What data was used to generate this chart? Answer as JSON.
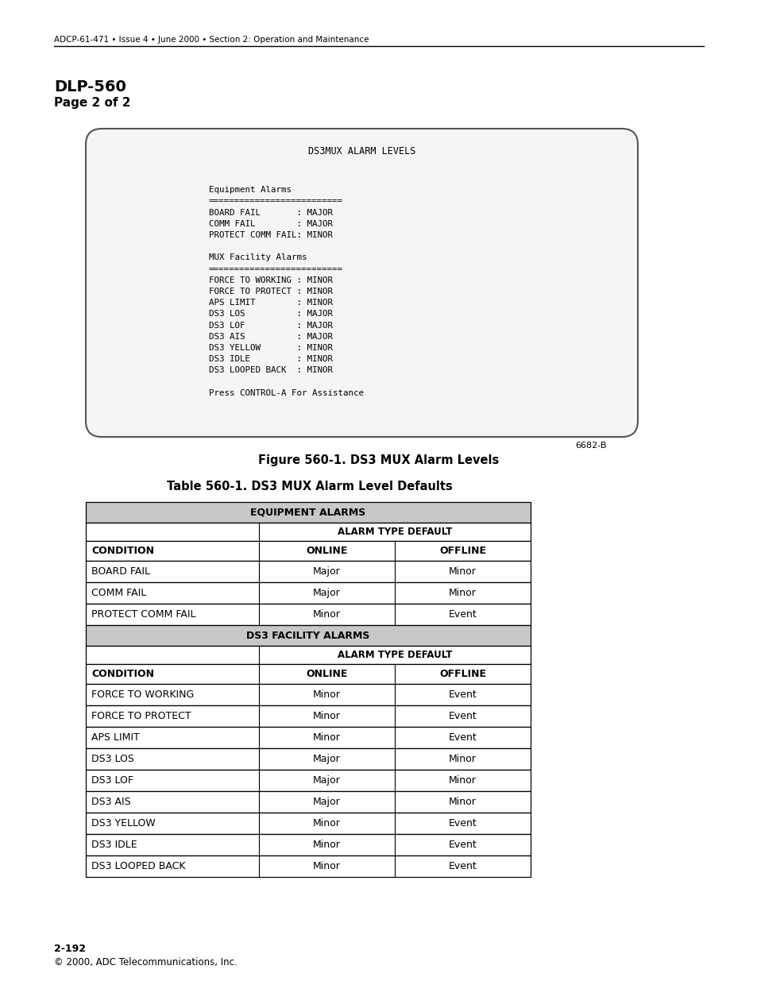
{
  "header_text": "ADCP-61-471 • Issue 4 • June 2000 • Section 2: Operation and Maintenance",
  "title1": "DLP-560",
  "title2": "Page 2 of 2",
  "screen_title": "DS3MUX ALARM LEVELS",
  "screen_lines": [
    "",
    "Equipment Alarms",
    "==========================",
    "BOARD FAIL       : MAJOR",
    "COMM FAIL        : MAJOR",
    "PROTECT COMM FAIL: MINOR",
    "",
    "MUX Facility Alarms",
    "==========================",
    "FORCE TO WORKING : MINOR",
    "FORCE TO PROTECT : MINOR",
    "APS LIMIT        : MINOR",
    "DS3 LOS          : MAJOR",
    "DS3 LOF          : MAJOR",
    "DS3 AIS          : MAJOR",
    "DS3 YELLOW       : MINOR",
    "DS3 IDLE         : MINOR",
    "DS3 LOOPED BACK  : MINOR",
    "",
    "Press CONTROL-A For Assistance"
  ],
  "figure_number": "6682-B",
  "figure_caption": "Figure 560-1. DS3 MUX Alarm Levels",
  "table_caption": "Table 560-1. DS3 MUX Alarm Level Defaults",
  "eq_header": "EQUIPMENT ALARMS",
  "ds3_header": "DS3 FACILITY ALARMS",
  "alarm_type_default": "ALARM TYPE DEFAULT",
  "col_condition": "CONDITION",
  "col_online": "ONLINE",
  "col_offline": "OFFLINE",
  "eq_rows": [
    [
      "BOARD FAIL",
      "Major",
      "Minor"
    ],
    [
      "COMM FAIL",
      "Major",
      "Minor"
    ],
    [
      "PROTECT COMM FAIL",
      "Minor",
      "Event"
    ]
  ],
  "ds3_rows": [
    [
      "FORCE TO WORKING",
      "Minor",
      "Event"
    ],
    [
      "FORCE TO PROTECT",
      "Minor",
      "Event"
    ],
    [
      "APS LIMIT",
      "Minor",
      "Event"
    ],
    [
      "DS3 LOS",
      "Major",
      "Minor"
    ],
    [
      "DS3 LOF",
      "Major",
      "Minor"
    ],
    [
      "DS3 AIS",
      "Major",
      "Minor"
    ],
    [
      "DS3 YELLOW",
      "Minor",
      "Event"
    ],
    [
      "DS3 IDLE",
      "Minor",
      "Event"
    ],
    [
      "DS3 LOOPED BACK",
      "Minor",
      "Event"
    ]
  ],
  "footer_num": "2-192",
  "footer_copy": "© 2000, ADC Telecommunications, Inc.",
  "bg_color": "#ffffff",
  "gray_color": "#c8c8c8",
  "screen_bg": "#f5f5f5"
}
